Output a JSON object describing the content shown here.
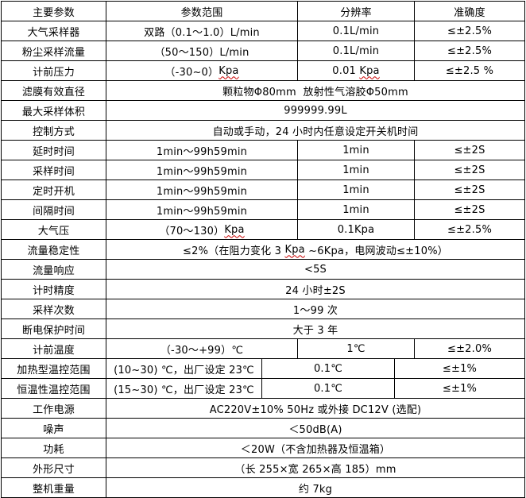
{
  "table": {
    "header": {
      "cells": [
        "主要参数",
        "参数范围",
        "分辨率",
        "准确度"
      ]
    },
    "rows": [
      {
        "layout": "four",
        "cells": [
          {
            "t": "大气采样器"
          },
          {
            "t": "双路（0.1～1.0）L/min"
          },
          {
            "t": "0.1L/min"
          },
          {
            "t": "≤±2.5%"
          }
        ]
      },
      {
        "layout": "four",
        "cells": [
          {
            "t": "粉尘采样流量"
          },
          {
            "t": "（50～150）L/min"
          },
          {
            "t": "0.1L/min"
          },
          {
            "t": "≤±2.5%"
          }
        ]
      },
      {
        "layout": "four",
        "cells": [
          {
            "t": "计前压力"
          },
          {
            "t": "（-30~0）Kpa",
            "wavy": "Kpa"
          },
          {
            "t": "0.01 Kpa",
            "wavy": "Kpa"
          },
          {
            "t": "≤±2.5 %"
          }
        ]
      },
      {
        "layout": "merged",
        "cells": [
          {
            "t": "滤膜有效直径"
          },
          {
            "t": "颗粒物Φ80mm  放射性气溶胶Φ50mm"
          }
        ]
      },
      {
        "layout": "merged",
        "cells": [
          {
            "t": "最大采样体积"
          },
          {
            "t": "999999.99L"
          }
        ]
      },
      {
        "layout": "merged",
        "cells": [
          {
            "t": "控制方式"
          },
          {
            "t": "自动或手动，24 小时内任意设定开关机时间"
          }
        ]
      },
      {
        "layout": "four",
        "cells": [
          {
            "t": "延时时间"
          },
          {
            "t": "1min～99h59min"
          },
          {
            "t": "1min"
          },
          {
            "t": "≤±2S"
          }
        ]
      },
      {
        "layout": "four",
        "cells": [
          {
            "t": "采样时间"
          },
          {
            "t": "1min～99h59min"
          },
          {
            "t": "1min"
          },
          {
            "t": "≤±2S"
          }
        ]
      },
      {
        "layout": "four",
        "cells": [
          {
            "t": "定时开机"
          },
          {
            "t": "1min～99h59min"
          },
          {
            "t": "1min"
          },
          {
            "t": "≤±2S"
          }
        ]
      },
      {
        "layout": "four",
        "cells": [
          {
            "t": "间隔时间"
          },
          {
            "t": "1min～99h59min"
          },
          {
            "t": "1min"
          },
          {
            "t": "≤±2S"
          }
        ]
      },
      {
        "layout": "four",
        "cells": [
          {
            "t": "大气压"
          },
          {
            "t": "（70～130）Kpa",
            "wavy": "Kpa"
          },
          {
            "t": "0.1Kpa"
          },
          {
            "t": "≤±2.5%"
          }
        ]
      },
      {
        "layout": "merged",
        "cells": [
          {
            "t": "流量稳定性"
          },
          {
            "t": "≤2%（在阻力变化 3 Kpa ~6Kpa，电网波动≤±10%）",
            "wavy": "Kpa"
          }
        ]
      },
      {
        "layout": "merged",
        "cells": [
          {
            "t": "流量响应"
          },
          {
            "t": "<5S"
          }
        ]
      },
      {
        "layout": "merged",
        "cells": [
          {
            "t": "计时精度"
          },
          {
            "t": "24 小时±2S"
          }
        ]
      },
      {
        "layout": "merged",
        "cells": [
          {
            "t": "采样次数"
          },
          {
            "t": "1～99 次"
          }
        ]
      },
      {
        "layout": "merged",
        "cells": [
          {
            "t": "断电保护时间"
          },
          {
            "t": "大于 3 年"
          }
        ]
      },
      {
        "layout": "four",
        "cells": [
          {
            "t": "计前温度"
          },
          {
            "t": "（-30～+99）℃"
          },
          {
            "t": "1℃"
          },
          {
            "t": "≤±2.0%"
          }
        ]
      },
      {
        "layout": "temp",
        "cells": [
          {
            "t": "加热型温控范围"
          },
          {
            "t": "(10~30) ℃，出厂设定 23℃"
          },
          {
            "t": "0.1℃"
          },
          {
            "t": "≤±1%"
          }
        ]
      },
      {
        "layout": "temp",
        "cells": [
          {
            "t": "恒温性温控范围"
          },
          {
            "t": "(15~30) ℃，出厂设定 23℃"
          },
          {
            "t": "0.1℃"
          },
          {
            "t": "≤±1%"
          }
        ]
      },
      {
        "layout": "merged",
        "cells": [
          {
            "t": "工作电源"
          },
          {
            "t": "AC220V±10% 50Hz 或外接 DC12V (选配)"
          }
        ]
      },
      {
        "layout": "merged",
        "cells": [
          {
            "t": "噪声"
          },
          {
            "t": "＜50dB(A)"
          }
        ]
      },
      {
        "layout": "merged",
        "cells": [
          {
            "t": "功耗"
          },
          {
            "t": "＜20W（不含加热器及恒温箱）"
          }
        ]
      },
      {
        "layout": "merged",
        "cells": [
          {
            "t": "外形尺寸"
          },
          {
            "t": "（长 255×宽 265×高 185）mm"
          }
        ]
      },
      {
        "layout": "merged",
        "cells": [
          {
            "t": "整机重量"
          },
          {
            "t": "约 7kg"
          }
        ]
      }
    ],
    "colors": {
      "border": "#000000",
      "text": "#000000",
      "spellcheck_underline": "#cc0000",
      "background": "#ffffff"
    }
  }
}
